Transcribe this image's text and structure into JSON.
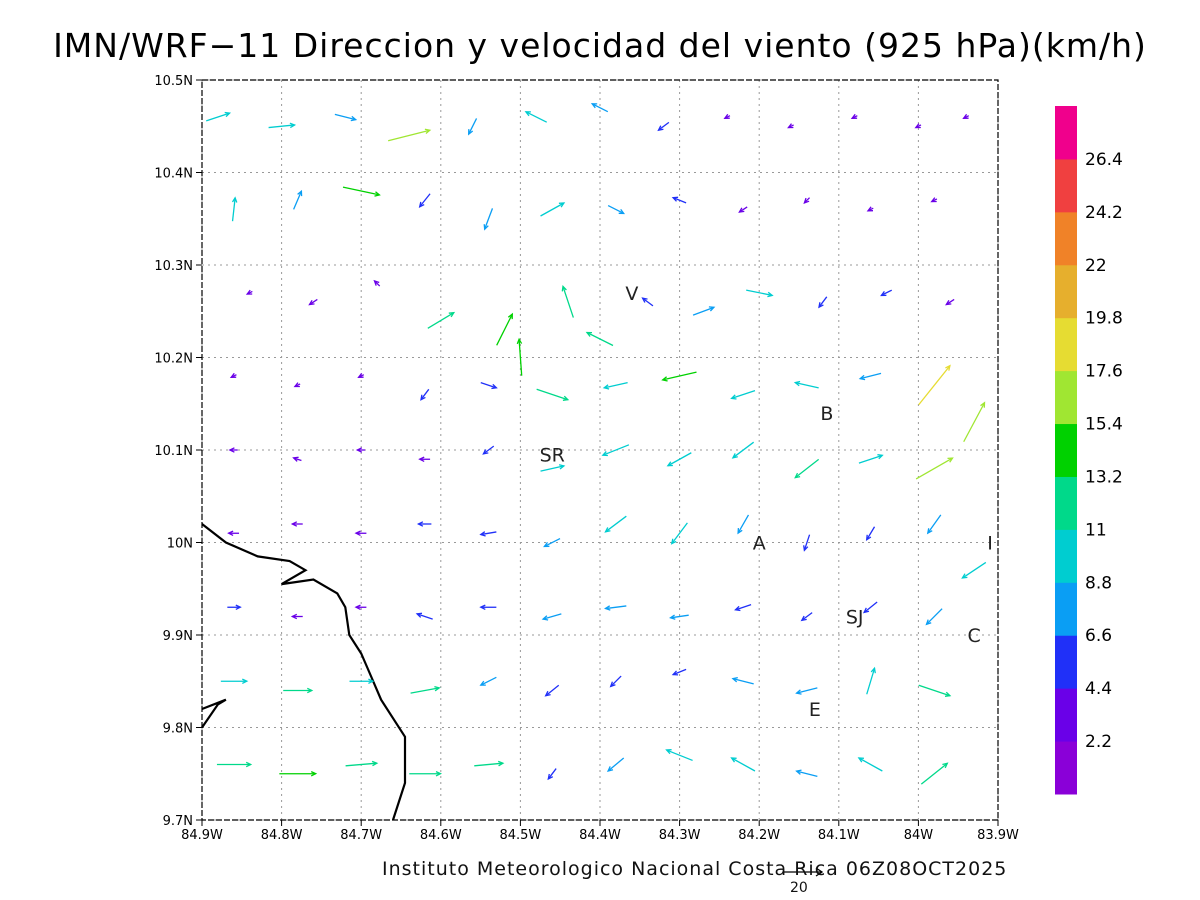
{
  "title": "IMN/WRF−11 Direccion y velocidad del viento (925 hPa)(km/h)",
  "footer": "Instituto Meteorologico Nacional Costa Rica 06Z08OCT2025",
  "reference_vector": "20",
  "chart_data": {
    "type": "vector-field",
    "title": "IMN/WRF−11 Direccion y velocidad del viento (925 hPa)(km/h)",
    "xlim": [
      -84.9,
      -83.9
    ],
    "ylim": [
      9.7,
      10.5
    ],
    "x_ticks": [
      "84.9W",
      "84.8W",
      "84.7W",
      "84.6W",
      "84.5W",
      "84.4W",
      "84.3W",
      "84.2W",
      "84.1W",
      "84.0W",
      "83.9W"
    ],
    "x_tick_labels": [
      "84.9W",
      "84.8W",
      "84.7W",
      "84.6W",
      "84.5W",
      "84.4W",
      "84.3W",
      "84.2W",
      "84.1W",
      "84W",
      "83.9W"
    ],
    "y_tick_labels": [
      "10.5N",
      "10.4N",
      "10.3N",
      "10.2N",
      "10.1N",
      "10N",
      "9.9N",
      "9.8N",
      "9.7N"
    ],
    "y_ticks": [
      10.5,
      10.4,
      10.3,
      10.2,
      10.1,
      10.0,
      9.9,
      9.8,
      9.7
    ],
    "grid": true,
    "colorbar": {
      "labels": [
        "2.2",
        "4.4",
        "6.6",
        "8.8",
        "11",
        "13.2",
        "15.4",
        "17.6",
        "19.8",
        "22",
        "24.2",
        "26.4"
      ],
      "colors": [
        "#8a00d8",
        "#6a00e8",
        "#2030f8",
        "#0a9ef4",
        "#00cdd0",
        "#00d98a",
        "#00d100",
        "#a0e632",
        "#e6dc32",
        "#e6af2d",
        "#f08228",
        "#f04040",
        "#f0008c"
      ]
    },
    "places": [
      {
        "label": "V",
        "lon": -84.36,
        "lat": 10.27
      },
      {
        "label": "B",
        "lon": -84.115,
        "lat": 10.14
      },
      {
        "label": "SR",
        "lon": -84.46,
        "lat": 10.095
      },
      {
        "label": "A",
        "lon": -84.2,
        "lat": 10.0
      },
      {
        "label": "I",
        "lon": -83.91,
        "lat": 10.0
      },
      {
        "label": "SJ",
        "lon": -84.08,
        "lat": 9.92
      },
      {
        "label": "C",
        "lon": -83.93,
        "lat": 9.9
      },
      {
        "label": "E",
        "lon": -84.13,
        "lat": 9.82
      }
    ],
    "coastline": [
      [
        -84.9,
        10.02
      ],
      [
        -84.87,
        10.0
      ],
      [
        -84.83,
        9.985
      ],
      [
        -84.79,
        9.98
      ],
      [
        -84.77,
        9.97
      ],
      [
        -84.8,
        9.955
      ],
      [
        -84.76,
        9.96
      ],
      [
        -84.73,
        9.945
      ],
      [
        -84.72,
        9.93
      ],
      [
        -84.715,
        9.9
      ],
      [
        -84.7,
        9.88
      ],
      [
        -84.69,
        9.86
      ],
      [
        -84.675,
        9.83
      ],
      [
        -84.66,
        9.81
      ],
      [
        -84.645,
        9.79
      ],
      [
        -84.645,
        9.74
      ],
      [
        -84.66,
        9.7
      ]
    ],
    "coastline_peninsula": [
      [
        -84.9,
        9.8
      ],
      [
        -84.88,
        9.825
      ],
      [
        -84.87,
        9.83
      ],
      [
        -84.9,
        9.82
      ]
    ],
    "wind_vectors": [
      {
        "lon": -84.88,
        "lat": 10.46,
        "u": 9,
        "v": 3
      },
      {
        "lon": -84.8,
        "lat": 10.45,
        "u": 10,
        "v": 1
      },
      {
        "lon": -84.72,
        "lat": 10.46,
        "u": 8,
        "v": -2
      },
      {
        "lon": -84.64,
        "lat": 10.44,
        "u": 16,
        "v": 4
      },
      {
        "lon": -84.56,
        "lat": 10.45,
        "u": -3,
        "v": -6
      },
      {
        "lon": -84.48,
        "lat": 10.46,
        "u": -8,
        "v": 4
      },
      {
        "lon": -84.4,
        "lat": 10.47,
        "u": -6,
        "v": 3
      },
      {
        "lon": -84.32,
        "lat": 10.45,
        "u": -4,
        "v": -3
      },
      {
        "lon": -84.24,
        "lat": 10.46,
        "u": -2,
        "v": -1
      },
      {
        "lon": -84.16,
        "lat": 10.45,
        "u": -2,
        "v": -1
      },
      {
        "lon": -84.08,
        "lat": 10.46,
        "u": -2,
        "v": -1
      },
      {
        "lon": -84.0,
        "lat": 10.45,
        "u": -2,
        "v": -1
      },
      {
        "lon": -83.94,
        "lat": 10.46,
        "u": -2,
        "v": -1
      },
      {
        "lon": -84.86,
        "lat": 10.36,
        "u": 1,
        "v": 9
      },
      {
        "lon": -84.78,
        "lat": 10.37,
        "u": 3,
        "v": 7
      },
      {
        "lon": -84.7,
        "lat": 10.38,
        "u": 14,
        "v": -3
      },
      {
        "lon": -84.62,
        "lat": 10.37,
        "u": -4,
        "v": -5
      },
      {
        "lon": -84.54,
        "lat": 10.35,
        "u": -3,
        "v": -8
      },
      {
        "lon": -84.46,
        "lat": 10.36,
        "u": 9,
        "v": 5
      },
      {
        "lon": -84.38,
        "lat": 10.36,
        "u": 6,
        "v": -3
      },
      {
        "lon": -84.3,
        "lat": 10.37,
        "u": -5,
        "v": 2
      },
      {
        "lon": -84.22,
        "lat": 10.36,
        "u": -3,
        "v": -2
      },
      {
        "lon": -84.14,
        "lat": 10.37,
        "u": -2,
        "v": -2
      },
      {
        "lon": -84.06,
        "lat": 10.36,
        "u": -2,
        "v": -1
      },
      {
        "lon": -83.98,
        "lat": 10.37,
        "u": -2,
        "v": -1
      },
      {
        "lon": -84.84,
        "lat": 10.27,
        "u": -2,
        "v": -1
      },
      {
        "lon": -84.76,
        "lat": 10.26,
        "u": -3,
        "v": -2
      },
      {
        "lon": -84.68,
        "lat": 10.28,
        "u": -2,
        "v": 2
      },
      {
        "lon": -84.6,
        "lat": 10.24,
        "u": 10,
        "v": 6
      },
      {
        "lon": -84.52,
        "lat": 10.23,
        "u": 6,
        "v": 12
      },
      {
        "lon": -84.5,
        "lat": 10.2,
        "u": -1,
        "v": 14
      },
      {
        "lon": -84.44,
        "lat": 10.26,
        "u": -4,
        "v": 12
      },
      {
        "lon": -84.4,
        "lat": 10.22,
        "u": -10,
        "v": 5
      },
      {
        "lon": -84.34,
        "lat": 10.26,
        "u": -4,
        "v": 3
      },
      {
        "lon": -84.27,
        "lat": 10.25,
        "u": 8,
        "v": 3
      },
      {
        "lon": -84.2,
        "lat": 10.27,
        "u": 10,
        "v": -2
      },
      {
        "lon": -84.12,
        "lat": 10.26,
        "u": -3,
        "v": -4
      },
      {
        "lon": -84.04,
        "lat": 10.27,
        "u": -4,
        "v": -2
      },
      {
        "lon": -83.96,
        "lat": 10.26,
        "u": -3,
        "v": -2
      },
      {
        "lon": -84.86,
        "lat": 10.18,
        "u": -2,
        "v": -1
      },
      {
        "lon": -84.78,
        "lat": 10.17,
        "u": -2,
        "v": -1
      },
      {
        "lon": -84.7,
        "lat": 10.18,
        "u": -2,
        "v": -1
      },
      {
        "lon": -84.62,
        "lat": 10.16,
        "u": -3,
        "v": -4
      },
      {
        "lon": -84.54,
        "lat": 10.17,
        "u": 6,
        "v": -2
      },
      {
        "lon": -84.46,
        "lat": 10.16,
        "u": 12,
        "v": -4
      },
      {
        "lon": -84.38,
        "lat": 10.17,
        "u": -9,
        "v": -2
      },
      {
        "lon": -84.3,
        "lat": 10.18,
        "u": -13,
        "v": -3
      },
      {
        "lon": -84.22,
        "lat": 10.16,
        "u": -9,
        "v": -3
      },
      {
        "lon": -84.14,
        "lat": 10.17,
        "u": -9,
        "v": 2
      },
      {
        "lon": -84.06,
        "lat": 10.18,
        "u": -8,
        "v": -2
      },
      {
        "lon": -83.98,
        "lat": 10.17,
        "u": 12,
        "v": 15
      },
      {
        "lon": -83.93,
        "lat": 10.13,
        "u": 8,
        "v": 15
      },
      {
        "lon": -84.86,
        "lat": 10.1,
        "u": -3,
        "v": 0
      },
      {
        "lon": -84.78,
        "lat": 10.09,
        "u": -3,
        "v": 1
      },
      {
        "lon": -84.7,
        "lat": 10.1,
        "u": -3,
        "v": 0
      },
      {
        "lon": -84.62,
        "lat": 10.09,
        "u": -4,
        "v": 0
      },
      {
        "lon": -84.54,
        "lat": 10.1,
        "u": -4,
        "v": -3
      },
      {
        "lon": -84.46,
        "lat": 10.08,
        "u": 9,
        "v": 2
      },
      {
        "lon": -84.38,
        "lat": 10.1,
        "u": -10,
        "v": -4
      },
      {
        "lon": -84.3,
        "lat": 10.09,
        "u": -9,
        "v": -5
      },
      {
        "lon": -84.22,
        "lat": 10.1,
        "u": -8,
        "v": -6
      },
      {
        "lon": -84.14,
        "lat": 10.08,
        "u": -9,
        "v": -7
      },
      {
        "lon": -84.06,
        "lat": 10.09,
        "u": 9,
        "v": 3
      },
      {
        "lon": -83.98,
        "lat": 10.08,
        "u": 14,
        "v": 8
      },
      {
        "lon": -84.86,
        "lat": 10.01,
        "u": -4,
        "v": 0
      },
      {
        "lon": -84.78,
        "lat": 10.02,
        "u": -4,
        "v": 0
      },
      {
        "lon": -84.7,
        "lat": 10.01,
        "u": -4,
        "v": 0
      },
      {
        "lon": -84.62,
        "lat": 10.02,
        "u": -5,
        "v": 0
      },
      {
        "lon": -84.54,
        "lat": 10.01,
        "u": -6,
        "v": -1
      },
      {
        "lon": -84.46,
        "lat": 10.0,
        "u": -6,
        "v": -3
      },
      {
        "lon": -84.38,
        "lat": 10.02,
        "u": -8,
        "v": -6
      },
      {
        "lon": -84.3,
        "lat": 10.01,
        "u": -6,
        "v": -8
      },
      {
        "lon": -84.22,
        "lat": 10.02,
        "u": -4,
        "v": -7
      },
      {
        "lon": -84.14,
        "lat": 10.0,
        "u": -2,
        "v": -6
      },
      {
        "lon": -84.06,
        "lat": 10.01,
        "u": -3,
        "v": -5
      },
      {
        "lon": -83.98,
        "lat": 10.02,
        "u": -5,
        "v": -7
      },
      {
        "lon": -83.93,
        "lat": 9.97,
        "u": -9,
        "v": -6
      },
      {
        "lon": -84.86,
        "lat": 9.93,
        "u": 5,
        "v": 0
      },
      {
        "lon": -84.78,
        "lat": 9.92,
        "u": -4,
        "v": 0
      },
      {
        "lon": -84.7,
        "lat": 9.93,
        "u": -4,
        "v": 0
      },
      {
        "lon": -84.62,
        "lat": 9.92,
        "u": -6,
        "v": 2
      },
      {
        "lon": -84.54,
        "lat": 9.93,
        "u": -6,
        "v": 0
      },
      {
        "lon": -84.46,
        "lat": 9.92,
        "u": -7,
        "v": -2
      },
      {
        "lon": -84.38,
        "lat": 9.93,
        "u": -8,
        "v": -1
      },
      {
        "lon": -84.3,
        "lat": 9.92,
        "u": -7,
        "v": -1
      },
      {
        "lon": -84.22,
        "lat": 9.93,
        "u": -6,
        "v": -2
      },
      {
        "lon": -84.14,
        "lat": 9.92,
        "u": -4,
        "v": -3
      },
      {
        "lon": -84.06,
        "lat": 9.93,
        "u": -5,
        "v": -4
      },
      {
        "lon": -83.98,
        "lat": 9.92,
        "u": -6,
        "v": -6
      },
      {
        "lon": -84.86,
        "lat": 9.85,
        "u": 10,
        "v": 0
      },
      {
        "lon": -84.78,
        "lat": 9.84,
        "u": 11,
        "v": 0
      },
      {
        "lon": -84.7,
        "lat": 9.85,
        "u": 9,
        "v": 0
      },
      {
        "lon": -84.62,
        "lat": 9.84,
        "u": 11,
        "v": 2
      },
      {
        "lon": -84.54,
        "lat": 9.85,
        "u": -6,
        "v": -3
      },
      {
        "lon": -84.46,
        "lat": 9.84,
        "u": -5,
        "v": -4
      },
      {
        "lon": -84.38,
        "lat": 9.85,
        "u": -4,
        "v": -4
      },
      {
        "lon": -84.3,
        "lat": 9.86,
        "u": -5,
        "v": -2
      },
      {
        "lon": -84.22,
        "lat": 9.85,
        "u": -8,
        "v": 2
      },
      {
        "lon": -84.14,
        "lat": 9.84,
        "u": -8,
        "v": -2
      },
      {
        "lon": -84.06,
        "lat": 9.85,
        "u": 3,
        "v": 10
      },
      {
        "lon": -83.98,
        "lat": 9.84,
        "u": 12,
        "v": -4
      },
      {
        "lon": -84.86,
        "lat": 9.76,
        "u": 13,
        "v": 0
      },
      {
        "lon": -84.78,
        "lat": 9.75,
        "u": 14,
        "v": 0
      },
      {
        "lon": -84.7,
        "lat": 9.76,
        "u": 12,
        "v": 1
      },
      {
        "lon": -84.62,
        "lat": 9.75,
        "u": 12,
        "v": 0
      },
      {
        "lon": -84.54,
        "lat": 9.76,
        "u": 11,
        "v": 1
      },
      {
        "lon": -84.46,
        "lat": 9.75,
        "u": -3,
        "v": -4
      },
      {
        "lon": -84.38,
        "lat": 9.76,
        "u": -6,
        "v": -5
      },
      {
        "lon": -84.3,
        "lat": 9.77,
        "u": -10,
        "v": 4
      },
      {
        "lon": -84.22,
        "lat": 9.76,
        "u": -9,
        "v": 5
      },
      {
        "lon": -84.14,
        "lat": 9.75,
        "u": -8,
        "v": 2
      },
      {
        "lon": -84.06,
        "lat": 9.76,
        "u": -9,
        "v": 5
      },
      {
        "lon": -83.98,
        "lat": 9.75,
        "u": 10,
        "v": 8
      }
    ]
  }
}
